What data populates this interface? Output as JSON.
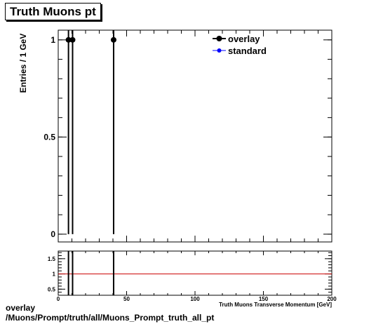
{
  "title": "Truth Muons pt",
  "footer": {
    "line1": "overlay",
    "line2": "/Muons/Prompt/truth/all/Muons_Prompt_truth_all_pt"
  },
  "colors": {
    "overlay": "#000000",
    "standard": "#0000ff",
    "ratio_line": "#cc0000"
  },
  "chart_data": [
    {
      "type": "line",
      "panel": "main",
      "title": "Truth Muons pt",
      "ylabel": "Entries / 1 GeV",
      "xlabel": "Truth Muons Transverse Momentum [GeV]",
      "xlim": [
        0,
        200
      ],
      "ylim": [
        -0.04,
        1.05
      ],
      "y_ticks": [
        0,
        0.5,
        1
      ],
      "y_tick_labels": [
        "0",
        "0.5",
        "1"
      ],
      "grid": false,
      "legend_position": "top-right",
      "series": [
        {
          "name": "overlay",
          "x": [
            7.5,
            10.5,
            40.5
          ],
          "y": [
            1,
            1,
            1
          ],
          "y_err": [
            1,
            1,
            1
          ]
        },
        {
          "name": "standard",
          "x": [],
          "y": []
        }
      ]
    },
    {
      "type": "line",
      "panel": "ratio",
      "xlim": [
        0,
        200
      ],
      "ylim": [
        0.3,
        1.75
      ],
      "x_ticks": [
        0,
        50,
        100,
        150,
        200
      ],
      "x_tick_labels": [
        "0",
        "50",
        "100",
        "150",
        "200"
      ],
      "y_ticks": [
        0.5,
        1,
        1.5
      ],
      "y_tick_labels": [
        "0.5",
        "1",
        "1.5"
      ],
      "reference_line": 1,
      "spikes_x": [
        7.5,
        10.5,
        40.5
      ]
    }
  ]
}
